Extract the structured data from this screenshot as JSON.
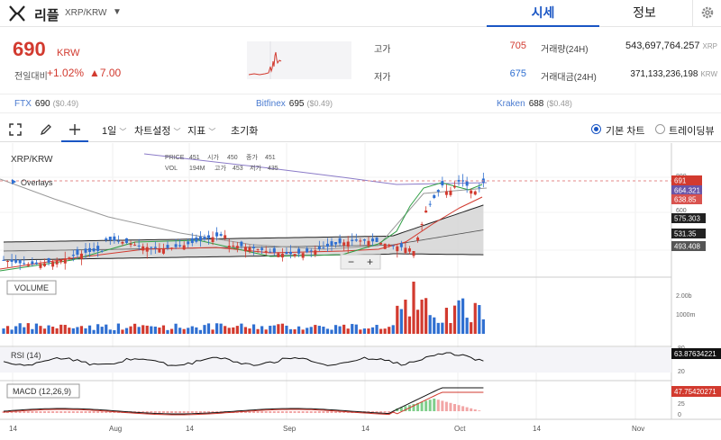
{
  "header": {
    "coin_name": "리플",
    "pair": "XRP/KRW",
    "tabs": [
      "시세",
      "정보"
    ]
  },
  "summary": {
    "price": "690",
    "price_unit": "KRW",
    "change_label": "전일대비",
    "change_pct": "+1.02%",
    "change_abs": "▲7.00",
    "high_label": "고가",
    "high": "705",
    "low_label": "저가",
    "low": "675",
    "volume_label": "거래량(24H)",
    "volume": "543,697,764.257",
    "volume_unit": "XRP",
    "amount_label": "거래대금(24H)",
    "amount": "371,133,236,198",
    "amount_unit": "KRW"
  },
  "exchanges": [
    {
      "name": "FTX",
      "price": "690",
      "sub": "($0.49)"
    },
    {
      "name": "Bitfinex",
      "price": "695",
      "sub": "($0.49)"
    },
    {
      "name": "Kraken",
      "price": "688",
      "sub": "($0.48)"
    }
  ],
  "toolbar": {
    "interval": "1일",
    "chart_settings": "차트설정",
    "indicators": "지표",
    "reset": "초기화",
    "basic_chart": "기본 차트",
    "trading_view": "트레이딩뷰"
  },
  "chart": {
    "symbol": "XRP/KRW",
    "overlays": "Overlays",
    "ohlc": {
      "price_label": "PRICE",
      "price": "451",
      "open_label": "시가",
      "open": "450",
      "close_label": "종가",
      "close": "451",
      "vol_label": "VOL",
      "vol": "194M",
      "high_label": "고가",
      "high": "453",
      "low_label": "저가",
      "low": "435"
    },
    "zoom_out": "−",
    "zoom_in": "+",
    "price_axis": [
      "800",
      "600",
      "400"
    ],
    "price_tags": [
      {
        "value": "691",
        "color": "#d23a2f"
      },
      {
        "value": "664.321",
        "color": "#6a55a8"
      },
      {
        "value": "638.85",
        "color": "#d9534f"
      },
      {
        "value": "575.303",
        "color": "#222222"
      },
      {
        "value": "531.35",
        "color": "#222222"
      },
      {
        "value": "493.408",
        "color": "#555555"
      }
    ],
    "volume_label": "VOLUME",
    "volume_axis": [
      "2.00b",
      "1000m"
    ],
    "rsi_label": "RSI (14)",
    "rsi_axis": [
      "80",
      "20"
    ],
    "rsi_value": "63.87634221",
    "macd_label": "MACD (12,26,9)",
    "macd_axis": [
      "50",
      "25",
      "0"
    ],
    "macd_value": "47.75420271",
    "x_axis": [
      "14",
      "Aug",
      "14",
      "Sep",
      "14",
      "Oct",
      "14",
      "Nov"
    ]
  },
  "colors": {
    "up": "#d23a2f",
    "down": "#2f6fd1",
    "accent": "#1a56c4"
  }
}
